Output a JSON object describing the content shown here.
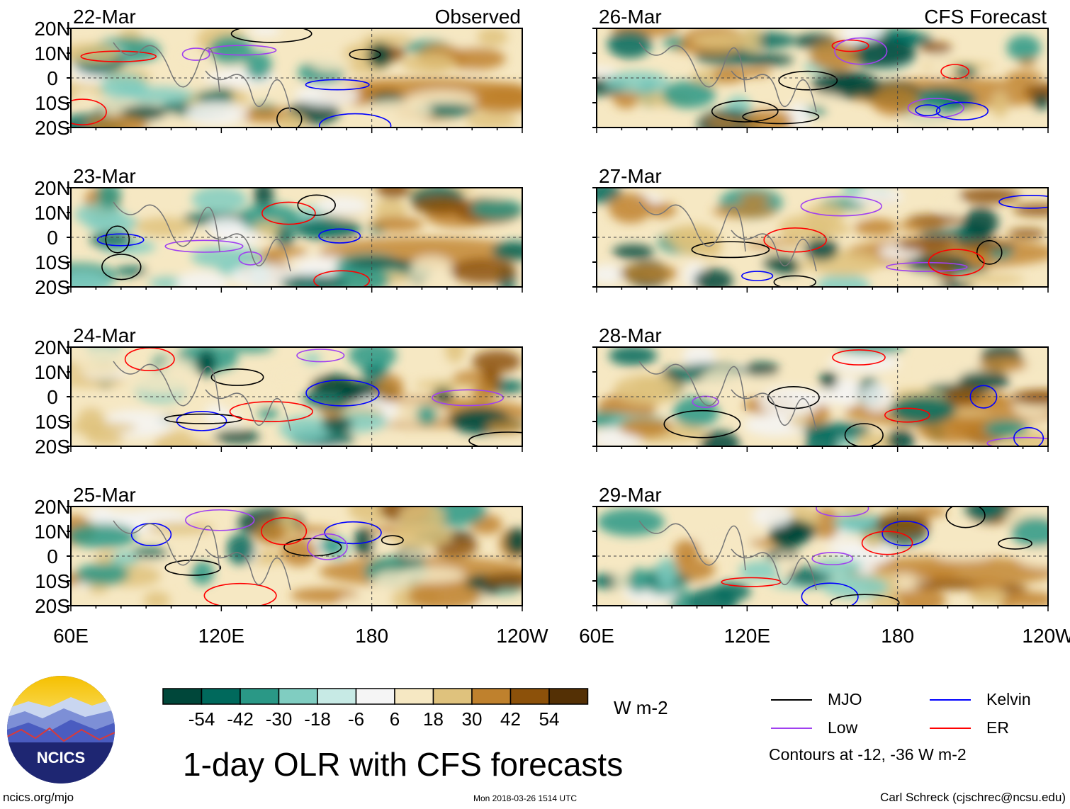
{
  "chart_data": {
    "type": "heatmap",
    "title": "1-day OLR with CFS forecasts",
    "units": "W m-2",
    "columns": [
      {
        "label": "Observed",
        "dates": [
          "22-Mar",
          "23-Mar",
          "24-Mar",
          "25-Mar"
        ]
      },
      {
        "label": "CFS Forecast",
        "dates": [
          "26-Mar",
          "27-Mar",
          "28-Mar",
          "29-Mar"
        ]
      }
    ],
    "x_ticks": [
      "60E",
      "120E",
      "180",
      "120W"
    ],
    "y_ticks": [
      "20N",
      "10N",
      "0",
      "10S",
      "20S"
    ],
    "colorbar": {
      "colors": [
        "#00473a",
        "#00695c",
        "#2a9886",
        "#80cdc1",
        "#c7eae5",
        "#f5f5f5",
        "#f6e8c3",
        "#dfc27d",
        "#bf812d",
        "#8c510a",
        "#543005"
      ],
      "ticks": [
        "-54",
        "-42",
        "-30",
        "-18",
        "-6",
        "6",
        "18",
        "30",
        "42",
        "54"
      ]
    },
    "contours": {
      "series": [
        {
          "name": "MJO",
          "color": "#000000"
        },
        {
          "name": "Kelvin",
          "color": "#0000ff"
        },
        {
          "name": "Low",
          "color": "#a040f0"
        },
        {
          "name": "ER",
          "color": "#ff0000"
        }
      ],
      "levels_note": "Contours at -12, -36 W m-2"
    }
  },
  "footer": {
    "logo_text": "NCICS",
    "site": "ncics.org/mjo",
    "timestamp": "Mon 2018-03-26 1514 UTC",
    "author": "Carl Schreck (cjschrec@ncsu.edu)"
  }
}
